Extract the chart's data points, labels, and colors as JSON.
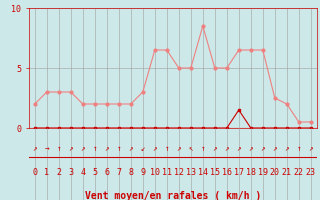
{
  "x": [
    0,
    1,
    2,
    3,
    4,
    5,
    6,
    7,
    8,
    9,
    10,
    11,
    12,
    13,
    14,
    15,
    16,
    17,
    18,
    19,
    20,
    21,
    22,
    23
  ],
  "y_rafales": [
    2.0,
    3.0,
    3.0,
    3.0,
    2.0,
    2.0,
    2.0,
    2.0,
    2.0,
    3.0,
    6.5,
    6.5,
    5.0,
    5.0,
    8.5,
    5.0,
    5.0,
    6.5,
    6.5,
    6.5,
    2.5,
    2.0,
    0.5,
    0.5
  ],
  "y_moyen": [
    0.0,
    0.0,
    0.0,
    0.0,
    0.0,
    0.0,
    0.0,
    0.0,
    0.0,
    0.0,
    0.0,
    0.0,
    0.0,
    0.0,
    0.0,
    0.0,
    0.0,
    1.5,
    0.0,
    0.0,
    0.0,
    0.0,
    0.0,
    0.0
  ],
  "line_color_rafales": "#f08080",
  "line_color_moyen": "#cc0000",
  "marker_color_rafales": "#f08080",
  "marker_color_moyen": "#cc0000",
  "bg_color": "#cce8e8",
  "grid_color": "#a0a0a0",
  "axis_color": "#cc0000",
  "tick_color": "#cc0000",
  "label_color": "#cc0000",
  "xlabel": "Vent moyen/en rafales ( km/h )",
  "ylim": [
    0,
    10
  ],
  "xlim": [
    -0.5,
    23.5
  ],
  "yticks": [
    0,
    5,
    10
  ],
  "font_size_label": 7,
  "font_size_tick": 6,
  "arrows": [
    "↗",
    "→",
    "↑",
    "↗",
    "↗",
    "↑",
    "↗",
    "↑",
    "↗",
    "↙",
    "↗",
    "↑",
    "↗",
    "↖",
    "↑",
    "↗",
    "↗",
    "↗",
    "↗",
    "↗",
    "↗",
    "↗",
    "↑",
    "↗"
  ]
}
